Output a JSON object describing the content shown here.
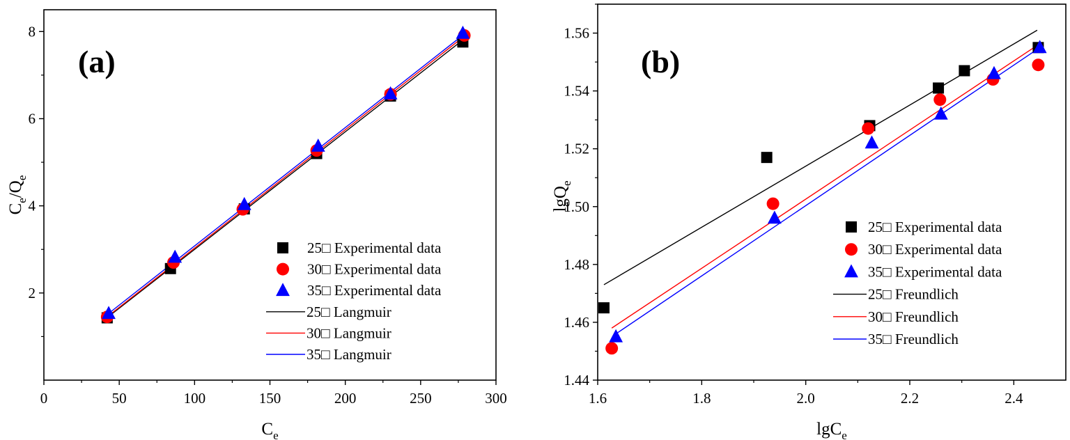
{
  "chart_data": [
    {
      "type": "scatter",
      "panel_label": "(a)",
      "xlabel": "C",
      "xlabel_sub": "e",
      "ylabel_parts": [
        "C",
        "e",
        "/Q",
        "e"
      ],
      "xlim": [
        0,
        300
      ],
      "ylim": [
        0,
        8.5
      ],
      "x_ticks": [
        0,
        50,
        100,
        150,
        200,
        250,
        300
      ],
      "y_ticks": [
        2,
        4,
        6,
        8
      ],
      "legend_position": "bottom-right",
      "series": [
        {
          "name": "25□  Experimental data",
          "marker": "square",
          "color": "#000000",
          "x": [
            42,
            84,
            133,
            181,
            230,
            278
          ],
          "y": [
            1.43,
            2.56,
            3.93,
            5.2,
            6.52,
            7.76
          ]
        },
        {
          "name": "30□  Experimental data",
          "marker": "circle",
          "color": "#ff0000",
          "x": [
            42,
            86,
            132,
            181,
            230,
            279
          ],
          "y": [
            1.45,
            2.7,
            3.92,
            5.27,
            6.56,
            7.91
          ]
        },
        {
          "name": "35□  Experimental data",
          "marker": "triangle",
          "color": "#0000ff",
          "x": [
            43,
            87,
            133,
            182,
            230,
            278
          ],
          "y": [
            1.53,
            2.82,
            4.03,
            5.37,
            6.57,
            7.96
          ]
        },
        {
          "name": "25□  Langmuir",
          "marker": "line",
          "color": "#000000",
          "x": [
            40,
            280
          ],
          "y": [
            1.38,
            7.86
          ]
        },
        {
          "name": "30□  Langmuir",
          "marker": "line",
          "color": "#ff0000",
          "x": [
            40,
            280
          ],
          "y": [
            1.4,
            7.92
          ]
        },
        {
          "name": "35□  Langmuir",
          "marker": "line",
          "color": "#0000ff",
          "x": [
            40,
            280
          ],
          "y": [
            1.45,
            7.97
          ]
        }
      ]
    },
    {
      "type": "scatter",
      "panel_label": "(b)",
      "xlabel": "lgC",
      "xlabel_sub": "e",
      "ylabel_parts": [
        "lgQ",
        "e"
      ],
      "xlim": [
        1.6,
        2.5
      ],
      "ylim": [
        1.44,
        1.57
      ],
      "x_ticks": [
        1.6,
        1.8,
        2.0,
        2.2,
        2.4
      ],
      "x_tick_labels": [
        "1.6",
        "1.8",
        "2.0",
        "2.2",
        "2.4"
      ],
      "y_ticks": [
        1.44,
        1.46,
        1.48,
        1.5,
        1.52,
        1.54,
        1.56
      ],
      "y_tick_labels": [
        "1.44",
        "1.46",
        "1.48",
        "1.50",
        "1.52",
        "1.54",
        "1.56"
      ],
      "legend_position": "right",
      "series": [
        {
          "name": "25□  Experimental data",
          "marker": "square",
          "color": "#000000",
          "x": [
            1.612,
            1.925,
            2.123,
            2.255,
            2.305,
            2.447
          ],
          "y": [
            1.465,
            1.517,
            1.528,
            1.541,
            1.547,
            1.555
          ]
        },
        {
          "name": "30□  Experimental data",
          "marker": "circle",
          "color": "#ff0000",
          "x": [
            1.627,
            1.937,
            2.12,
            2.258,
            2.36,
            2.447
          ],
          "y": [
            1.451,
            1.501,
            1.527,
            1.537,
            1.544,
            1.549
          ]
        },
        {
          "name": "35□  Experimental data",
          "marker": "triangle",
          "color": "#0000ff",
          "x": [
            1.635,
            1.94,
            2.127,
            2.26,
            2.362,
            2.45
          ],
          "y": [
            1.455,
            1.496,
            1.522,
            1.532,
            1.546,
            1.555
          ]
        },
        {
          "name": "25□  Freundlich",
          "marker": "line",
          "color": "#000000",
          "x": [
            1.612,
            2.445
          ],
          "y": [
            1.473,
            1.561
          ]
        },
        {
          "name": "30□  Freundlich",
          "marker": "line",
          "color": "#ff0000",
          "x": [
            1.627,
            2.447
          ],
          "y": [
            1.458,
            1.556
          ]
        },
        {
          "name": "35□  Freundlich",
          "marker": "line",
          "color": "#0000ff",
          "x": [
            1.635,
            2.45
          ],
          "y": [
            1.456,
            1.555
          ]
        }
      ]
    }
  ]
}
